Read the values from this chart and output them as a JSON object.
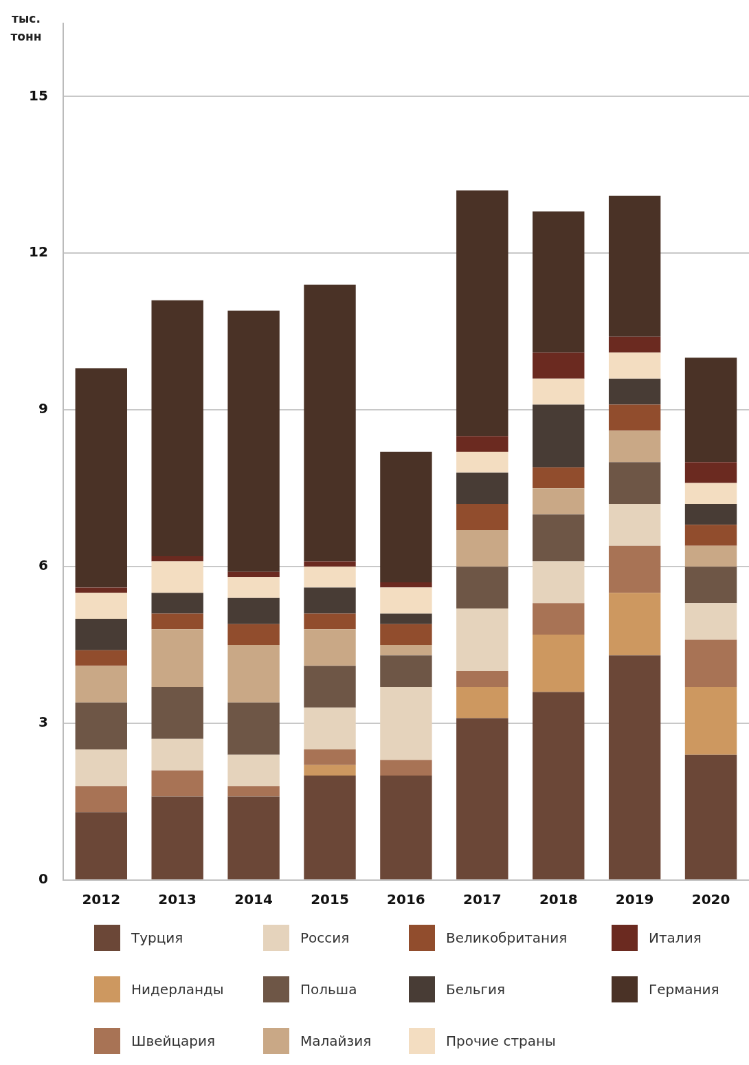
{
  "chart_data": {
    "type": "bar",
    "stacked": true,
    "ylabel": "тыс. тонн",
    "categories": [
      "2012",
      "2013",
      "2014",
      "2015",
      "2016",
      "2017",
      "2018",
      "2019",
      "2020"
    ],
    "series": [
      {
        "name": "Турция",
        "color": "#6b4737",
        "values": [
          1.3,
          1.6,
          1.6,
          2.0,
          2.0,
          3.1,
          3.6,
          4.3,
          2.4
        ]
      },
      {
        "name": "Нидерланды",
        "color": "#cd9860",
        "values": [
          0,
          0,
          0,
          0.2,
          0,
          0.6,
          1.1,
          1.2,
          1.3
        ]
      },
      {
        "name": "Швейцария",
        "color": "#a87355",
        "values": [
          0.5,
          0.5,
          0.2,
          0.3,
          0.3,
          0.3,
          0.6,
          0.9,
          0.9
        ]
      },
      {
        "name": "Россия",
        "color": "#e5d3bc",
        "values": [
          0.7,
          0.6,
          0.6,
          0.8,
          1.4,
          1.2,
          0.8,
          0.8,
          0.7
        ]
      },
      {
        "name": "Польша",
        "color": "#6e5646",
        "values": [
          0.9,
          1.0,
          1.0,
          0.8,
          0.6,
          0.8,
          0.9,
          0.8,
          0.7
        ]
      },
      {
        "name": "Малайзия",
        "color": "#c9a886",
        "values": [
          0.7,
          1.1,
          1.1,
          0.7,
          0.2,
          0.7,
          0.5,
          0.6,
          0.4
        ]
      },
      {
        "name": "Великобритания",
        "color": "#914d2d",
        "values": [
          0.3,
          0.3,
          0.4,
          0.3,
          0.4,
          0.5,
          0.4,
          0.5,
          0.4
        ]
      },
      {
        "name": "Бельгия",
        "color": "#483c35",
        "values": [
          0.6,
          0.4,
          0.5,
          0.5,
          0.2,
          0.6,
          1.2,
          0.5,
          0.4
        ]
      },
      {
        "name": "Прочие страны",
        "color": "#f3ddc1",
        "values": [
          0.5,
          0.6,
          0.4,
          0.4,
          0.5,
          0.4,
          0.5,
          0.5,
          0.4
        ]
      },
      {
        "name": "Италия",
        "color": "#6b2a20",
        "values": [
          0.1,
          0.1,
          0.1,
          0.1,
          0.1,
          0.3,
          0.5,
          0.3,
          0.4
        ]
      },
      {
        "name": "Германия",
        "color": "#4a3226",
        "values": [
          4.2,
          4.9,
          5.0,
          5.3,
          2.5,
          4.7,
          2.7,
          2.7,
          2.0
        ]
      }
    ],
    "ylim": [
      0,
      16.4
    ],
    "yticks": [
      0,
      3,
      6,
      9,
      12,
      15
    ],
    "grid": "y",
    "legend": "bottom"
  }
}
